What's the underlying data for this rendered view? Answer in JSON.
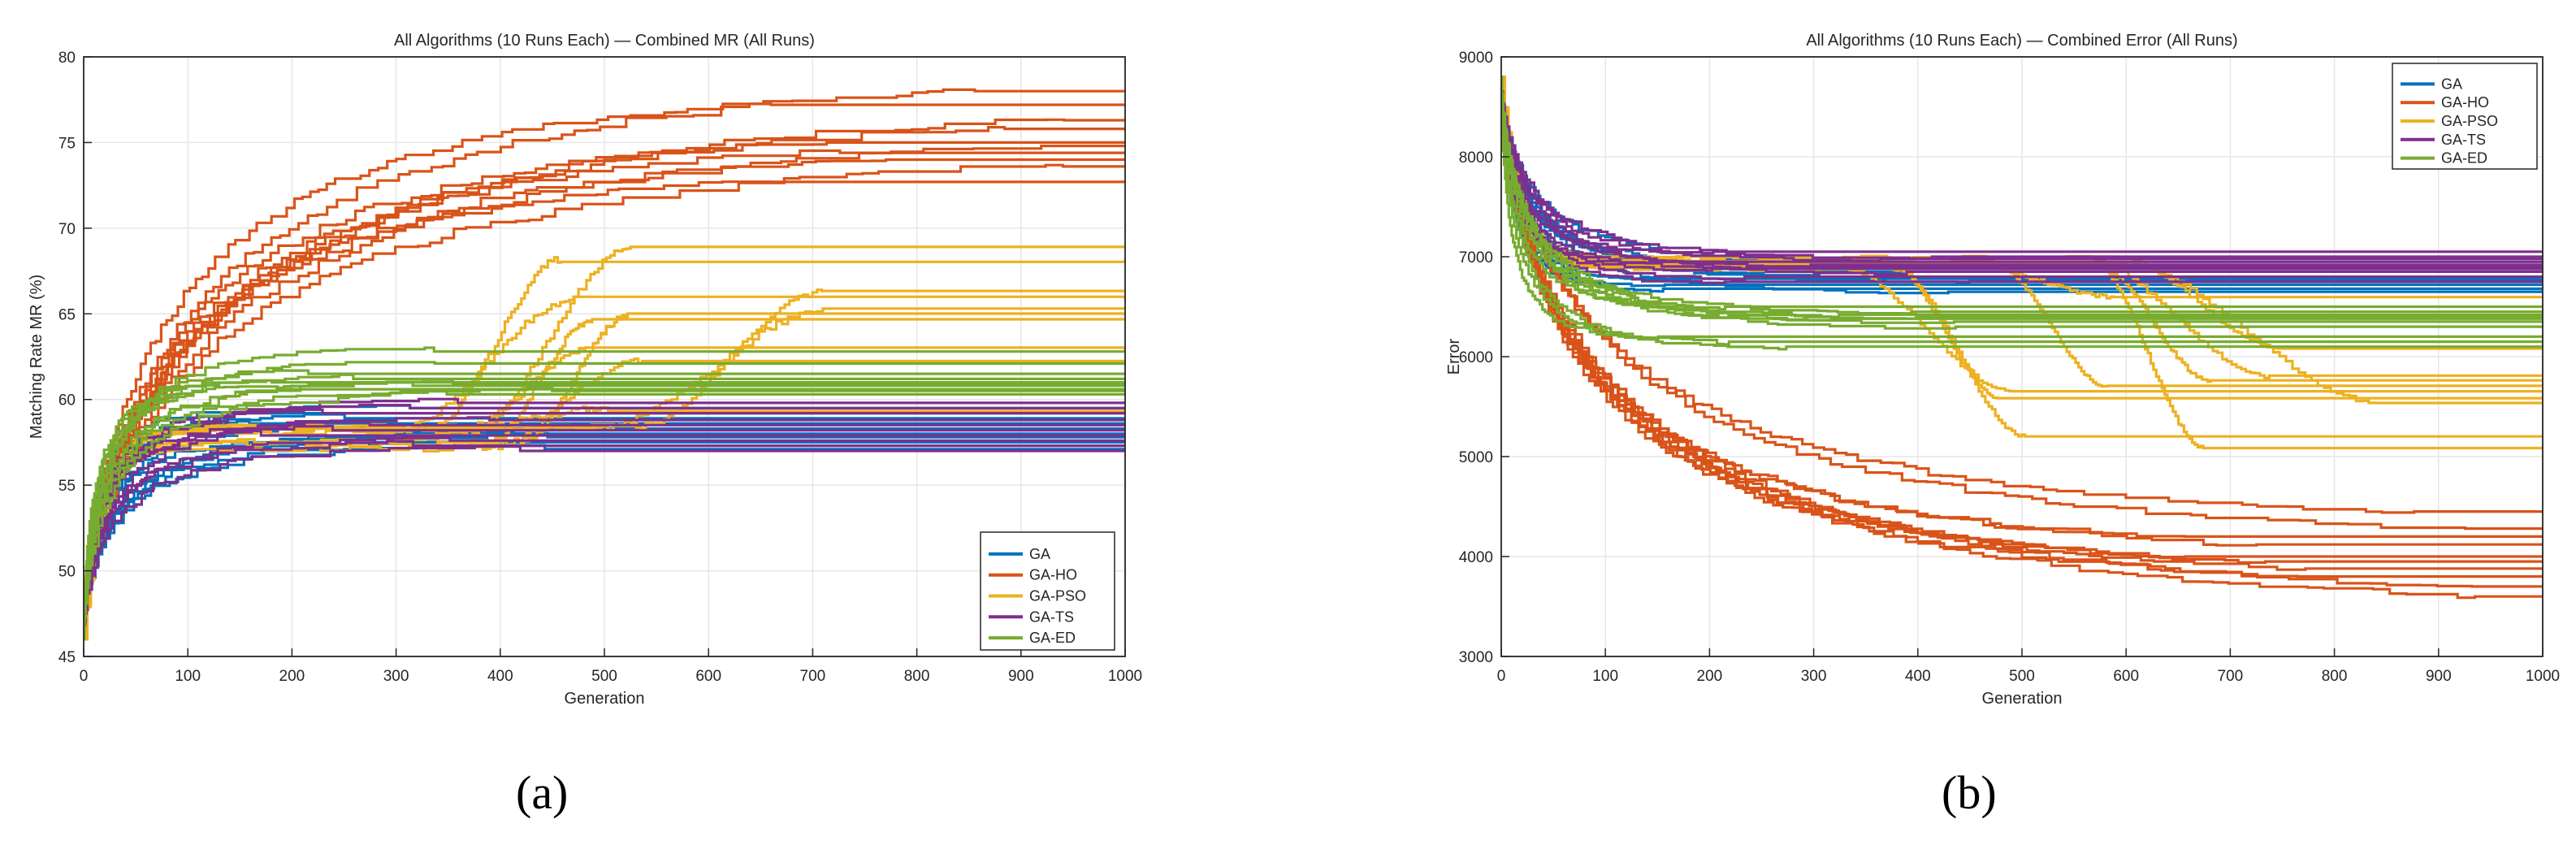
{
  "colors": {
    "GA": "#0072BD",
    "GA-HO": "#D95319",
    "GA-PSO": "#EDB120",
    "GA-TS": "#7E2F8E",
    "GA-ED": "#77AC30"
  },
  "captions": {
    "a": "(a)",
    "b": "(b)"
  },
  "chart_data": [
    {
      "type": "line",
      "title": "All Algorithms (10 Runs Each) — Combined MR (All Runs)",
      "xlabel": "Generation",
      "ylabel": "Matching Rate MR (%)",
      "xlim": [
        0,
        1000
      ],
      "ylim": [
        45,
        80
      ],
      "xticks": [
        0,
        100,
        200,
        300,
        400,
        500,
        600,
        700,
        800,
        900,
        1000
      ],
      "yticks": [
        45,
        50,
        55,
        60,
        65,
        70,
        75,
        80
      ],
      "grid": true,
      "legend_position": "bottom-right",
      "legend": [
        "GA",
        "GA-HO",
        "GA-PSO",
        "GA-TS",
        "GA-ED"
      ],
      "series": [
        {
          "name": "GA",
          "start": 46,
          "finals": [
            59.2,
            58.9,
            58.6,
            58.3,
            58.0,
            57.8,
            57.5,
            57.3,
            57.1,
            59.5
          ]
        },
        {
          "name": "GA-HO",
          "start": 46,
          "finals": [
            78.0,
            77.2,
            76.3,
            75.8,
            75.0,
            74.8,
            74.4,
            74.0,
            73.6,
            72.7
          ]
        },
        {
          "name": "GA-PSO",
          "start": 46,
          "finals": [
            68.9,
            68.2,
            66.3,
            65.8,
            65.3,
            64.9,
            64.6,
            62.9,
            62.3,
            59.5
          ]
        },
        {
          "name": "GA-TS",
          "start": 46,
          "finals": [
            59.8,
            59.5,
            59.2,
            58.8,
            58.5,
            58.2,
            57.9,
            57.6,
            57.3,
            57.0
          ]
        },
        {
          "name": "GA-ED",
          "start": 46,
          "finals": [
            62.8,
            62.1,
            61.5,
            61.2,
            61.0,
            60.9,
            60.8,
            60.6,
            60.5,
            60.3
          ]
        }
      ]
    },
    {
      "type": "line",
      "title": "All Algorithms (10 Runs Each) — Combined Error (All Runs)",
      "xlabel": "Generation",
      "ylabel": "Error",
      "xlim": [
        0,
        1000
      ],
      "ylim": [
        3000,
        9000
      ],
      "xticks": [
        0,
        100,
        200,
        300,
        400,
        500,
        600,
        700,
        800,
        900,
        1000
      ],
      "yticks": [
        3000,
        4000,
        5000,
        6000,
        7000,
        8000,
        9000
      ],
      "grid": true,
      "legend_position": "top-right",
      "legend": [
        "GA",
        "GA-HO",
        "GA-PSO",
        "GA-TS",
        "GA-ED"
      ],
      "series": [
        {
          "name": "GA",
          "start": 8800,
          "finals": [
            6950,
            6900,
            6850,
            6800,
            6760,
            6720,
            6680,
            6650,
            6900,
            6780
          ]
        },
        {
          "name": "GA-HO",
          "start": 8800,
          "finals": [
            4450,
            4280,
            4200,
            4120,
            4000,
            3950,
            3880,
            3800,
            3700,
            3600
          ]
        },
        {
          "name": "GA-PSO",
          "start": 8800,
          "finals": [
            6600,
            6100,
            5800,
            5750,
            5700,
            5650,
            5600,
            5550,
            5200,
            5100
          ]
        },
        {
          "name": "GA-TS",
          "start": 8800,
          "finals": [
            7050,
            7000,
            6980,
            6950,
            6920,
            6900,
            6880,
            6850,
            6800,
            6750
          ]
        },
        {
          "name": "GA-ED",
          "start": 8800,
          "finals": [
            6500,
            6450,
            6420,
            6400,
            6380,
            6350,
            6300,
            6200,
            6150,
            6100
          ]
        }
      ]
    }
  ]
}
